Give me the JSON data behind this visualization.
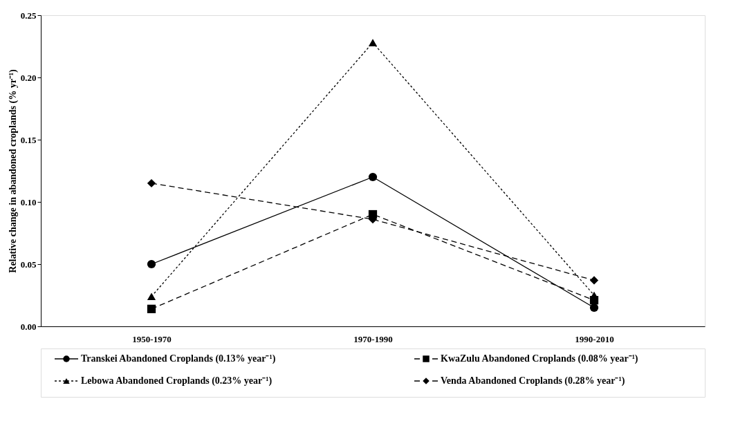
{
  "chart_data": {
    "type": "line",
    "ylabel": "Relative change in abandoned croplands (% yr⁻¹)",
    "categories": [
      "1950-1970",
      "1970-1990",
      "1990-2010"
    ],
    "ylim": [
      0,
      0.25
    ],
    "yticks": [
      {
        "value": 0,
        "label": "0.00"
      },
      {
        "value": 0.05,
        "label": "0.05"
      },
      {
        "value": 0.1,
        "label": "0.10"
      },
      {
        "value": 0.15,
        "label": "0.15"
      },
      {
        "value": 0.2,
        "label": "0.20"
      },
      {
        "value": 0.25,
        "label": "0.25"
      }
    ],
    "grid": false,
    "legend": "bottom",
    "series": [
      {
        "name": "Transkei Abandoned Croplands (0.13% year⁻¹)",
        "color": "#000000",
        "marker": "circle",
        "line_style": "solid",
        "values": [
          0.05,
          0.12,
          0.015
        ]
      },
      {
        "name": "KwaZulu Abandoned Croplands (0.08% year⁻¹)",
        "color": "#000000",
        "marker": "square",
        "line_style": "dashed",
        "values": [
          0.014,
          0.09,
          0.021
        ]
      },
      {
        "name": "Lebowa Abandoned Croplands (0.23% year⁻¹)",
        "color": "#000000",
        "marker": "triangle",
        "line_style": "dotted",
        "values": [
          0.024,
          0.228,
          0.025
        ]
      },
      {
        "name": "Venda Abandoned Croplands (0.28% year⁻¹)",
        "color": "#000000",
        "marker": "diamond",
        "line_style": "dashed",
        "values": [
          0.115,
          0.086,
          0.037
        ]
      }
    ]
  }
}
